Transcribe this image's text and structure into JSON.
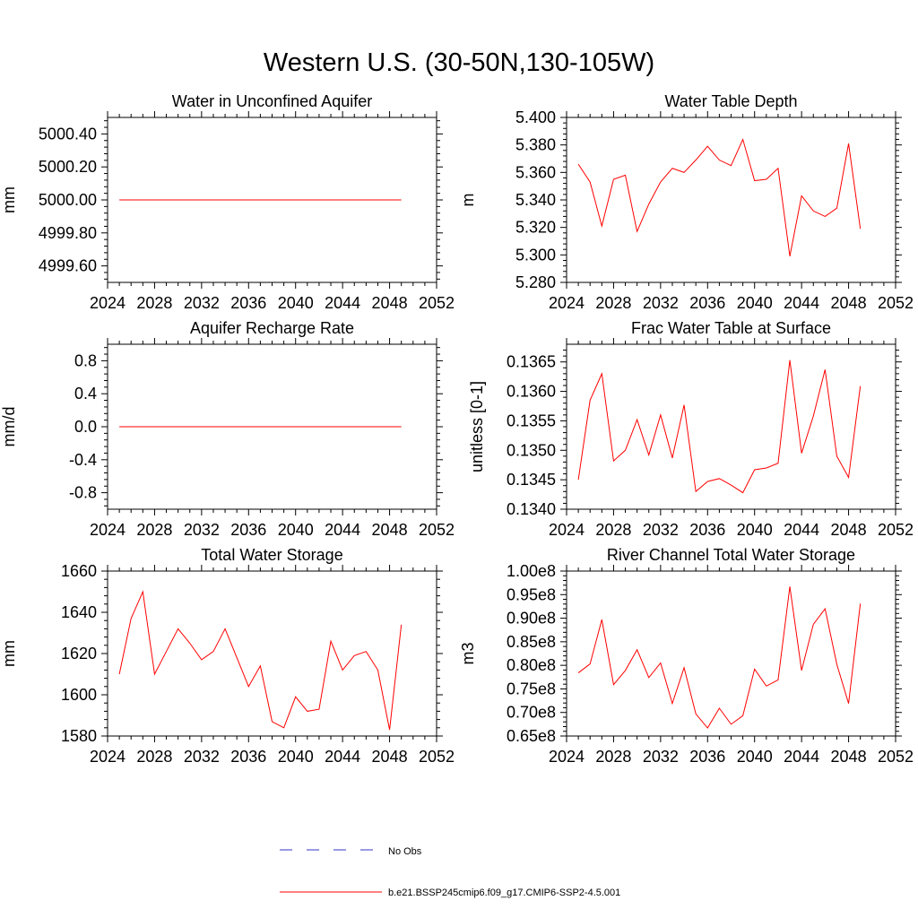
{
  "title": "Western U.S. (30-50N,130-105W)",
  "colors": {
    "model": "#ff0000",
    "obs": "#3333cc",
    "axis": "#000000"
  },
  "legend": {
    "obs_label": "No Obs",
    "model_label": "b.e21.BSSP245cmip6.f09_g17.CMIP6-SSP2-4.5.001"
  },
  "chart_data": [
    {
      "type": "line",
      "title": "Water in Unconfined Aquifer",
      "ylabel": "mm",
      "xlim": [
        2024,
        2052
      ],
      "xticks": [
        2024,
        2028,
        2032,
        2036,
        2040,
        2044,
        2048,
        2052
      ],
      "ylim": [
        4999.5,
        5000.5
      ],
      "yticks": [
        4999.6,
        4999.8,
        5000.0,
        5000.2,
        5000.4
      ],
      "yticklabels": [
        "4999.60",
        "4999.80",
        "5000.00",
        "5000.20",
        "5000.40"
      ],
      "x": [
        2025,
        2026,
        2027,
        2028,
        2029,
        2030,
        2031,
        2032,
        2033,
        2034,
        2035,
        2036,
        2037,
        2038,
        2039,
        2040,
        2041,
        2042,
        2043,
        2044,
        2045,
        2046,
        2047,
        2048,
        2049
      ],
      "series": [
        {
          "values": [
            5000.0,
            5000.0,
            5000.0,
            5000.0,
            5000.0,
            5000.0,
            5000.0,
            5000.0,
            5000.0,
            5000.0,
            5000.0,
            5000.0,
            5000.0,
            5000.0,
            5000.0,
            5000.0,
            5000.0,
            5000.0,
            5000.0,
            5000.0,
            5000.0,
            5000.0,
            5000.0,
            5000.0,
            5000.0
          ]
        }
      ]
    },
    {
      "type": "line",
      "title": "Water Table Depth",
      "ylabel": "m",
      "xlim": [
        2024,
        2052
      ],
      "xticks": [
        2024,
        2028,
        2032,
        2036,
        2040,
        2044,
        2048,
        2052
      ],
      "ylim": [
        5.28,
        5.4
      ],
      "yticks": [
        5.28,
        5.3,
        5.32,
        5.34,
        5.36,
        5.38,
        5.4
      ],
      "yticklabels": [
        "5.280",
        "5.300",
        "5.320",
        "5.340",
        "5.360",
        "5.380",
        "5.400"
      ],
      "x": [
        2025,
        2026,
        2027,
        2028,
        2029,
        2030,
        2031,
        2032,
        2033,
        2034,
        2035,
        2036,
        2037,
        2038,
        2039,
        2040,
        2041,
        2042,
        2043,
        2044,
        2045,
        2046,
        2047,
        2048,
        2049
      ],
      "series": [
        {
          "values": [
            5.366,
            5.353,
            5.321,
            5.355,
            5.358,
            5.317,
            5.337,
            5.353,
            5.363,
            5.36,
            5.369,
            5.379,
            5.369,
            5.365,
            5.384,
            5.354,
            5.355,
            5.363,
            5.299,
            5.343,
            5.332,
            5.328,
            5.334,
            5.381,
            5.319
          ]
        }
      ]
    },
    {
      "type": "line",
      "title": "Aquifer Recharge Rate",
      "ylabel": "mm/d",
      "xlim": [
        2024,
        2052
      ],
      "xticks": [
        2024,
        2028,
        2032,
        2036,
        2040,
        2044,
        2048,
        2052
      ],
      "ylim": [
        -1.0,
        1.0
      ],
      "yticks": [
        -0.8,
        -0.4,
        0.0,
        0.4,
        0.8
      ],
      "yticklabels": [
        "-0.8",
        "-0.4",
        "0.0",
        "0.4",
        "0.8"
      ],
      "x": [
        2025,
        2026,
        2027,
        2028,
        2029,
        2030,
        2031,
        2032,
        2033,
        2034,
        2035,
        2036,
        2037,
        2038,
        2039,
        2040,
        2041,
        2042,
        2043,
        2044,
        2045,
        2046,
        2047,
        2048,
        2049
      ],
      "series": [
        {
          "values": [
            0,
            0,
            0,
            0,
            0,
            0,
            0,
            0,
            0,
            0,
            0,
            0,
            0,
            0,
            0,
            0,
            0,
            0,
            0,
            0,
            0,
            0,
            0,
            0,
            0
          ]
        }
      ]
    },
    {
      "type": "line",
      "title": "Frac Water Table at Surface",
      "ylabel": "unitless [0-1]",
      "xlim": [
        2024,
        2052
      ],
      "xticks": [
        2024,
        2028,
        2032,
        2036,
        2040,
        2044,
        2048,
        2052
      ],
      "ylim": [
        0.134,
        0.1368
      ],
      "yticks": [
        0.134,
        0.1345,
        0.135,
        0.1355,
        0.136,
        0.1365
      ],
      "yticklabels": [
        "0.1340",
        "0.1345",
        "0.1350",
        "0.1355",
        "0.1360",
        "0.1365"
      ],
      "x": [
        2025,
        2026,
        2027,
        2028,
        2029,
        2030,
        2031,
        2032,
        2033,
        2034,
        2035,
        2036,
        2037,
        2038,
        2039,
        2040,
        2041,
        2042,
        2043,
        2044,
        2045,
        2046,
        2047,
        2048,
        2049
      ],
      "series": [
        {
          "values": [
            0.1345,
            0.13585,
            0.1363,
            0.13482,
            0.135,
            0.13552,
            0.13492,
            0.1356,
            0.13487,
            0.13577,
            0.1343,
            0.13447,
            0.13452,
            0.13441,
            0.13428,
            0.13467,
            0.1347,
            0.13478,
            0.13653,
            0.13495,
            0.13558,
            0.13637,
            0.1349,
            0.13454,
            0.13609
          ]
        }
      ]
    },
    {
      "type": "line",
      "title": "Total Water Storage",
      "ylabel": "mm",
      "xlim": [
        2024,
        2052
      ],
      "xticks": [
        2024,
        2028,
        2032,
        2036,
        2040,
        2044,
        2048,
        2052
      ],
      "ylim": [
        1580,
        1660
      ],
      "yticks": [
        1580,
        1600,
        1620,
        1640,
        1660
      ],
      "yticklabels": [
        "1580",
        "1600",
        "1620",
        "1640",
        "1660"
      ],
      "x": [
        2025,
        2026,
        2027,
        2028,
        2029,
        2030,
        2031,
        2032,
        2033,
        2034,
        2035,
        2036,
        2037,
        2038,
        2039,
        2040,
        2041,
        2042,
        2043,
        2044,
        2045,
        2046,
        2047,
        2048,
        2049
      ],
      "series": [
        {
          "values": [
            1610,
            1637,
            1650,
            1610,
            1621,
            1632,
            1625,
            1617,
            1621,
            1632,
            1618,
            1604,
            1614,
            1587,
            1584,
            1599,
            1592,
            1593,
            1626,
            1612,
            1619,
            1621,
            1612,
            1583,
            1634
          ]
        }
      ]
    },
    {
      "type": "line",
      "title": "River Channel Total Water Storage",
      "ylabel": "m3",
      "xlim": [
        2024,
        2052
      ],
      "xticks": [
        2024,
        2028,
        2032,
        2036,
        2040,
        2044,
        2048,
        2052
      ],
      "ylim": [
        65000000,
        100000000
      ],
      "yticks": [
        65000000,
        70000000,
        75000000,
        80000000,
        85000000,
        90000000,
        95000000,
        100000000
      ],
      "yticklabels": [
        "0.65e8",
        "0.70e8",
        "0.75e8",
        "0.80e8",
        "0.85e8",
        "0.90e8",
        "0.95e8",
        "1.00e8"
      ],
      "x": [
        2025,
        2026,
        2027,
        2028,
        2029,
        2030,
        2031,
        2032,
        2033,
        2034,
        2035,
        2036,
        2037,
        2038,
        2039,
        2040,
        2041,
        2042,
        2043,
        2044,
        2045,
        2046,
        2047,
        2048,
        2049
      ],
      "series": [
        {
          "values": [
            78400000,
            80300000,
            89700000,
            75900000,
            78900000,
            83300000,
            77400000,
            80500000,
            71900000,
            79500000,
            69700000,
            66700000,
            70900000,
            67500000,
            69300000,
            79200000,
            75600000,
            76900000,
            96700000,
            78900000,
            88700000,
            92000000,
            80200000,
            71900000,
            93100000
          ]
        }
      ]
    }
  ]
}
